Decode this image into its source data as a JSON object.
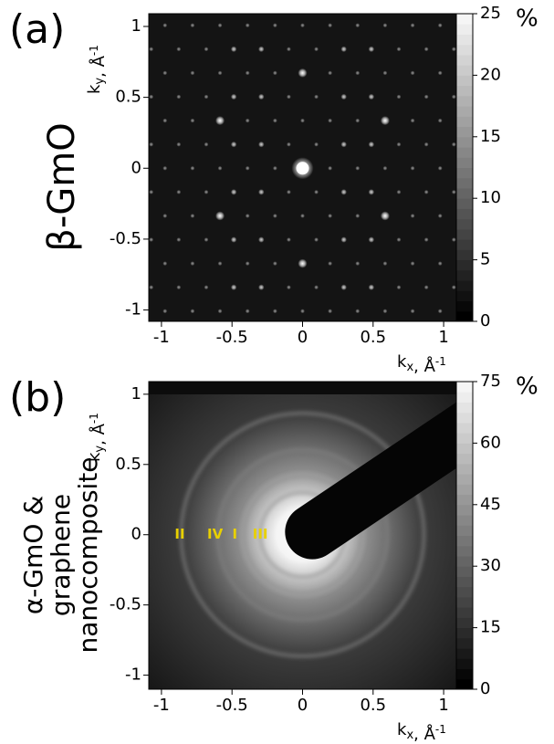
{
  "chart_data": [
    {
      "type": "image",
      "panel_label": "(a)",
      "side_label": [
        "β-GmO"
      ],
      "xlim": [
        -1.09,
        1.09
      ],
      "ylim": [
        -1.08,
        1.09
      ],
      "xticks": [
        -1,
        -0.5,
        0,
        0.5,
        1
      ],
      "yticks": [
        -1,
        -0.5,
        0,
        0.5,
        1
      ],
      "x_label": [
        "k",
        "x",
        ", Å",
        "-1"
      ],
      "y_label": [
        "k",
        "y",
        ", Å",
        "-1"
      ],
      "colorbar": {
        "lim": [
          0,
          25
        ],
        "ticks": [
          0,
          5,
          10,
          15,
          20,
          25
        ],
        "unit": "%"
      }
    },
    {
      "type": "image",
      "panel_label": "(b)",
      "side_label": [
        "α-GmO &",
        "graphene",
        "nanocomposite"
      ],
      "xlim": [
        -1.09,
        1.09
      ],
      "ylim": [
        -1.1,
        1.09
      ],
      "xticks": [
        -1,
        -0.5,
        0,
        0.5,
        1
      ],
      "yticks": [
        -1,
        -0.5,
        0,
        0.5,
        1
      ],
      "x_label": [
        "k",
        "x",
        ", Å",
        "-1"
      ],
      "y_label": [
        "k",
        "y",
        ", Å",
        "-1"
      ],
      "colorbar": {
        "lim": [
          0,
          75
        ],
        "ticks": [
          0,
          15,
          30,
          45,
          60,
          75
        ],
        "unit": "%"
      },
      "annotations": [
        "II",
        "IV",
        "I",
        "III"
      ]
    }
  ]
}
